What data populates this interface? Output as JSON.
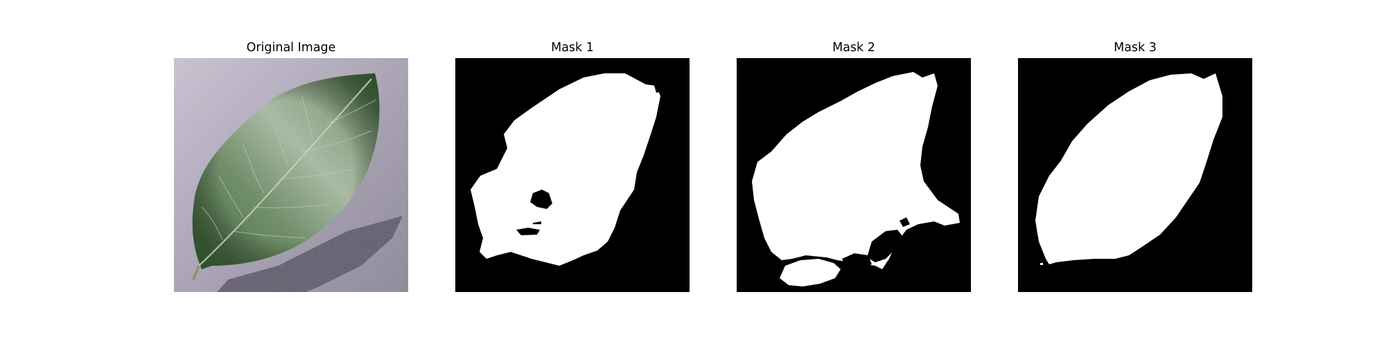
{
  "figure": {
    "panels": [
      {
        "title": "Original Image",
        "kind": "photo",
        "content": "leaf"
      },
      {
        "title": "Mask 1",
        "kind": "binary-mask"
      },
      {
        "title": "Mask 2",
        "kind": "binary-mask"
      },
      {
        "title": "Mask 3",
        "kind": "binary-mask"
      }
    ]
  },
  "colors": {
    "background": "#ffffff",
    "mask_foreground": "#ffffff",
    "mask_background": "#000000",
    "leaf_dark": "#2f5a2c",
    "leaf_light": "#b9c7b3",
    "surface": "#a9a4b3"
  }
}
